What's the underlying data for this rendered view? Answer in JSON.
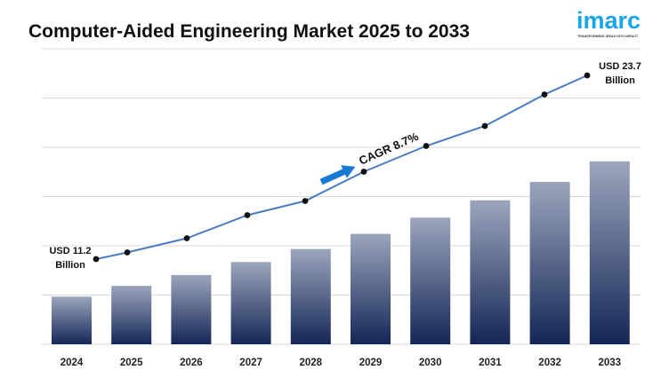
{
  "header": {
    "title": "Computer-Aided Engineering Market 2025 to 2033"
  },
  "logo": {
    "word": "imarc",
    "tagline": "TRANSFORMING IDEAS INTO IMPACT",
    "color": "#1aa6e6"
  },
  "chart_data": {
    "type": "bar",
    "title": "Computer-Aided Engineering Market 2025 to 2033",
    "xlabel": "",
    "ylabel": "",
    "categories": [
      "2024",
      "2025",
      "2026",
      "2027",
      "2028",
      "2029",
      "2030",
      "2031",
      "2032",
      "2033"
    ],
    "series": [
      {
        "values": [
          11.2,
          12.2,
          13.2,
          14.4,
          15.6,
          17.0,
          18.5,
          20.1,
          21.8,
          23.7
        ]
      }
    ],
    "line_overlay": {
      "values": [
        11.2,
        12.2,
        13.2,
        14.4,
        15.6,
        17.0,
        18.5,
        20.1,
        21.8,
        23.7
      ],
      "color": "#4a7cc0"
    },
    "annotations": {
      "start_label_1": "USD 11.2",
      "start_label_2": "Billion",
      "end_label_1": "USD 23.7",
      "end_label_2": "Billion",
      "cagr": "CAGR 8.7%"
    },
    "grid": true,
    "legend": "none",
    "bar_color_top": "#9ba6bd",
    "bar_color_bottom": "#152656",
    "arrow_color": "#1a7ad1"
  }
}
